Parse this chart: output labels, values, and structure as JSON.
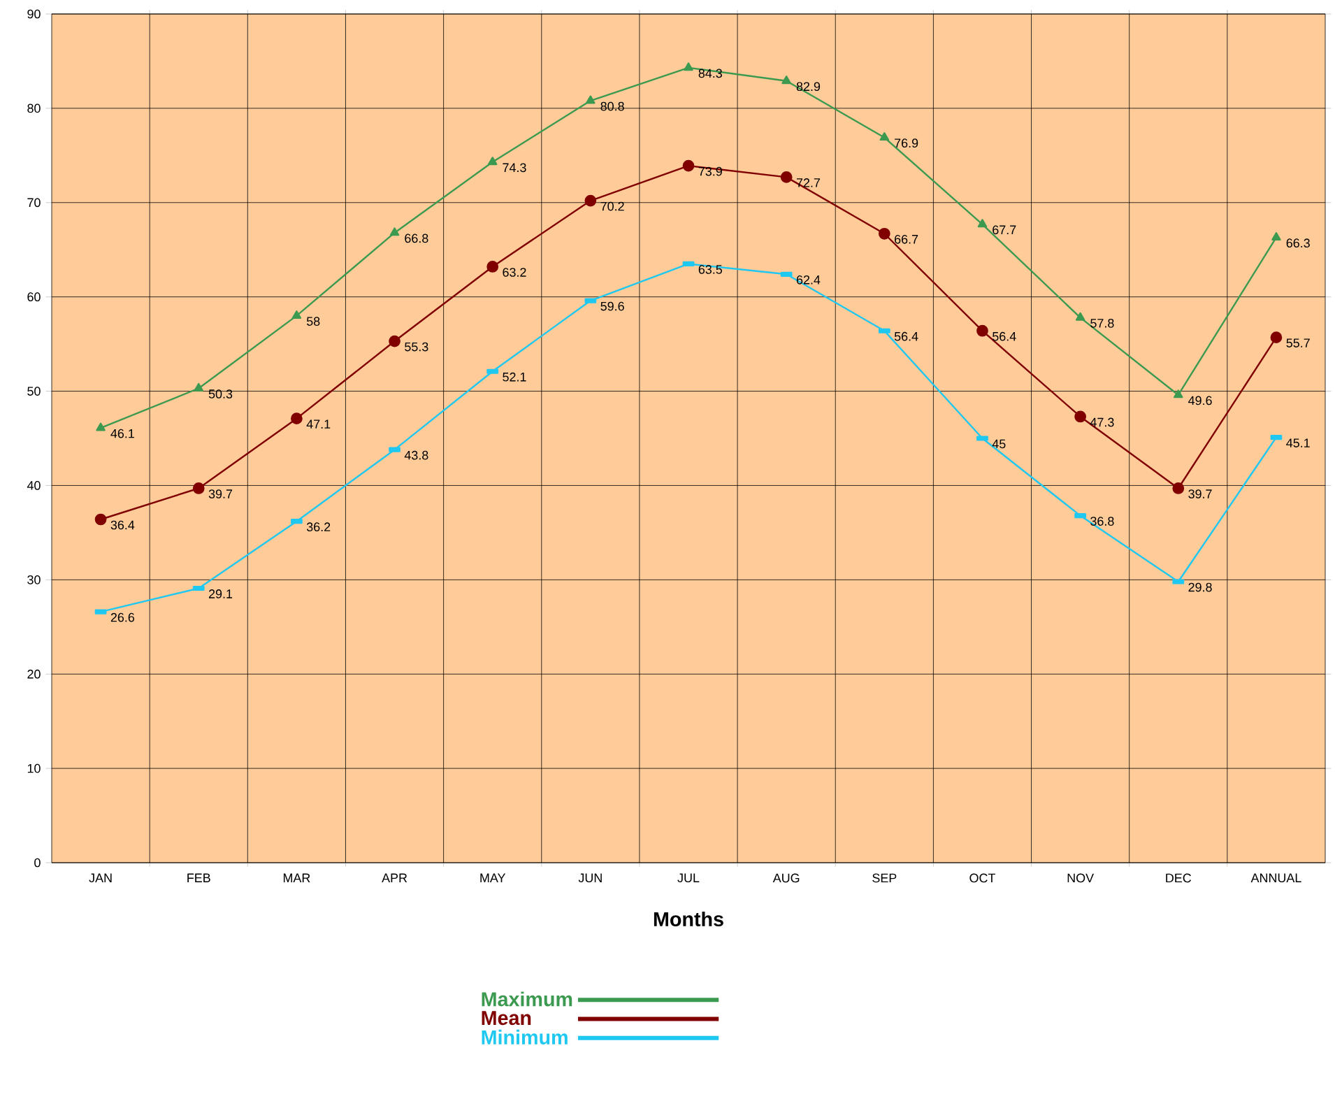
{
  "chart_data": {
    "type": "line",
    "xlabel": "Months",
    "categories": [
      "JAN",
      "FEB",
      "MAR",
      "APR",
      "MAY",
      "JUN",
      "JUL",
      "AUG",
      "SEP",
      "OCT",
      "NOV",
      "DEC",
      "ANNUAL"
    ],
    "series": [
      {
        "name": "Maximum",
        "color": "#3c9a50",
        "marker": "triangle",
        "values": [
          46.1,
          50.3,
          58,
          66.8,
          74.3,
          80.8,
          84.3,
          82.9,
          76.9,
          67.7,
          57.8,
          49.6,
          66.3
        ]
      },
      {
        "name": "Mean",
        "color": "#800000",
        "marker": "circle",
        "values": [
          36.4,
          39.7,
          47.1,
          55.3,
          63.2,
          70.2,
          73.9,
          72.7,
          66.7,
          56.4,
          47.3,
          39.7,
          55.7
        ]
      },
      {
        "name": "Minimum",
        "color": "#1ec8f0",
        "marker": "square",
        "values": [
          26.6,
          29.1,
          36.2,
          43.8,
          52.1,
          59.6,
          63.5,
          62.4,
          56.4,
          45,
          36.8,
          29.8,
          45.1
        ]
      }
    ],
    "ylim": [
      0,
      90
    ],
    "yticks": [
      0,
      10,
      20,
      30,
      40,
      50,
      60,
      70,
      80,
      90
    ],
    "grid": true,
    "legend": "bottom",
    "data_labels": true
  }
}
